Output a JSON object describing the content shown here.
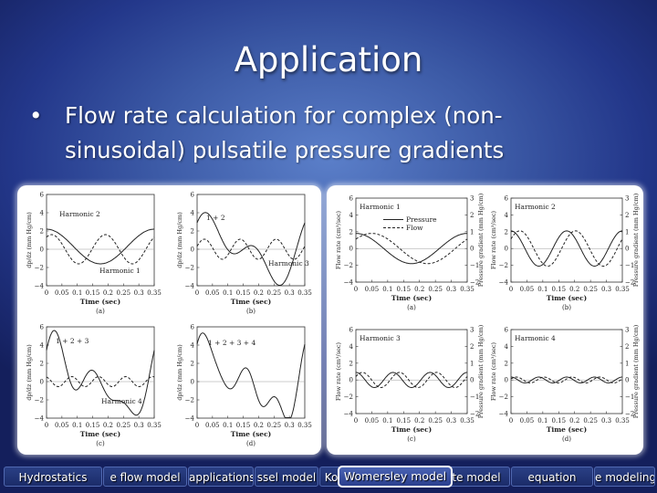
{
  "slide": {
    "title": "Application",
    "bullet_char": "•",
    "bullet_text": "Flow rate calculation for complex (non-sinusoidal) pulsatile pressure gradients"
  },
  "left_figure": {
    "panels": [
      {
        "caption": "(a)",
        "ylabel": "dp/dz (mm Hg/cm)",
        "xlabel": "Time (sec)",
        "yticks": [
          "6",
          "4",
          "2",
          "0",
          "−2",
          "−4"
        ],
        "xticks": [
          "0",
          "0.05",
          "0.1",
          "0.15",
          "0.2",
          "0.25",
          "0.3",
          "0.35"
        ],
        "annotations": [
          "Harmonic 2",
          "Harmonic 1"
        ]
      },
      {
        "caption": "(b)",
        "ylabel": "dp/dz (mm Hg/cm)",
        "xlabel": "Time (sec)",
        "yticks": [
          "6",
          "4",
          "2",
          "0",
          "−2",
          "−4"
        ],
        "xticks": [
          "0",
          "0.05",
          "0.1",
          "0.15",
          "0.2",
          "0.25",
          "0.3",
          "0.35"
        ],
        "annotations": [
          "1 + 2",
          "Harmonic 3"
        ]
      },
      {
        "caption": "(c)",
        "ylabel": "dp/dz (mm Hg/cm)",
        "xlabel": "Time (sec)",
        "yticks": [
          "6",
          "4",
          "2",
          "0",
          "−2",
          "−4"
        ],
        "xticks": [
          "0",
          "0.05",
          "0.1",
          "0.15",
          "0.2",
          "0.25",
          "0.3",
          "0.35"
        ],
        "annotations": [
          "1 + 2 + 3",
          "Harmonic 4"
        ]
      },
      {
        "caption": "(d)",
        "ylabel": "dp/dz (mm Hg/cm)",
        "xlabel": "Time (sec)",
        "yticks": [
          "6",
          "4",
          "2",
          "0",
          "−2",
          "−4"
        ],
        "xticks": [
          "0",
          "0.05",
          "0.1",
          "0.15",
          "0.2",
          "0.25",
          "0.3",
          "0.35"
        ],
        "annotations": [
          "1 + 2 + 3 + 4"
        ]
      }
    ]
  },
  "right_figure": {
    "panels": [
      {
        "caption": "(a)",
        "ylabel_left": "Flow rate (cm³/sec)",
        "ylabel_right": "Pressure gradient (mm Hg/cm)",
        "xlabel": "Time (sec)",
        "yticks_left": [
          "6",
          "4",
          "2",
          "0",
          "−2",
          "−4"
        ],
        "yticks_right": [
          "3",
          "2",
          "1",
          "0",
          "−1",
          "−2"
        ],
        "xticks": [
          "0",
          "0.05",
          "0.1",
          "0.15",
          "0.2",
          "0.25",
          "0.3",
          "0.35"
        ],
        "annotations": [
          "Harmonic 1"
        ],
        "legend": [
          "Pressure",
          "Flow"
        ]
      },
      {
        "caption": "(b)",
        "ylabel_left": "Flow rate (cm³/sec)",
        "ylabel_right": "Pressure gradient (mm Hg/cm)",
        "xlabel": "Time (sec)",
        "yticks_left": [
          "6",
          "4",
          "2",
          "0",
          "−2",
          "−4"
        ],
        "yticks_right": [
          "3",
          "2",
          "1",
          "0",
          "−1",
          "−2"
        ],
        "xticks": [
          "0",
          "0.05",
          "0.1",
          "0.15",
          "0.2",
          "0.25",
          "0.3",
          "0.35"
        ],
        "annotations": [
          "Harmonic 2"
        ]
      },
      {
        "caption": "(c)",
        "ylabel_left": "Flow rate (cm³/sec)",
        "ylabel_right": "Pressure gradient (mm Hg/cm)",
        "xlabel": "Time (sec)",
        "yticks_left": [
          "6",
          "4",
          "2",
          "0",
          "−2",
          "−4"
        ],
        "yticks_right": [
          "3",
          "2",
          "1",
          "0",
          "−1",
          "−2"
        ],
        "xticks": [
          "0",
          "0.05",
          "0.1",
          "0.15",
          "0.2",
          "0.25",
          "0.3",
          "0.35"
        ],
        "annotations": [
          "Harmonic 3"
        ]
      },
      {
        "caption": "(d)",
        "ylabel_left": "Flow rate (cm³/sec)",
        "ylabel_right": "Pressure gradient (mm Hg/cm)",
        "xlabel": "Time (sec)",
        "yticks_left": [
          "6",
          "4",
          "2",
          "0",
          "−2",
          "−4"
        ],
        "yticks_right": [
          "3",
          "2",
          "1",
          "0",
          "−1",
          "−2"
        ],
        "xticks": [
          "0",
          "0.05",
          "0.1",
          "0.15",
          "0.2",
          "0.25",
          "0.3",
          "0.35"
        ],
        "annotations": [
          "Harmonic 4"
        ]
      }
    ]
  },
  "nav": {
    "items": [
      {
        "label": "Hydrostatics",
        "active": false
      },
      {
        "label": "e flow model",
        "active": false
      },
      {
        "label": "applications",
        "active": false
      },
      {
        "label": "ssel model",
        "active": false
      },
      {
        "label": "Ko",
        "active": false
      },
      {
        "label": "Womersley model",
        "active": true
      },
      {
        "label": "te model",
        "active": false
      },
      {
        "label": "equation",
        "active": false
      },
      {
        "label": "e modeling",
        "active": false
      }
    ]
  },
  "colors": {
    "background": "#3c5aa6",
    "panel": "#ffffff",
    "text": "#ffffff",
    "nav_active_border": "#ffffff"
  }
}
